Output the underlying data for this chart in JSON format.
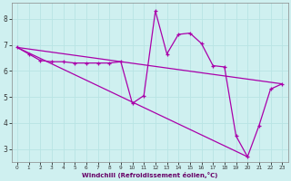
{
  "xlabel": "Windchill (Refroidissement éolien,°C)",
  "bg_color": "#cff0f0",
  "grid_color": "#b8e4e4",
  "line_color": "#aa00aa",
  "x_data": [
    0,
    1,
    2,
    3,
    4,
    5,
    6,
    7,
    8,
    9,
    10,
    11,
    12,
    13,
    14,
    15,
    16,
    17,
    18,
    19,
    20,
    21,
    22,
    23
  ],
  "y_main": [
    6.9,
    6.65,
    6.4,
    6.35,
    6.35,
    6.3,
    6.3,
    6.3,
    6.3,
    6.35,
    4.75,
    5.05,
    8.3,
    6.65,
    7.4,
    7.45,
    7.05,
    6.2,
    6.15,
    3.5,
    2.7,
    3.9,
    5.3,
    5.5
  ],
  "y_trend1_start": 6.9,
  "y_trend1_end": 5.5,
  "y_trend2_start": 6.9,
  "y_trend2_end": 2.7,
  "xlim": [
    -0.5,
    23.5
  ],
  "ylim": [
    2.5,
    8.6
  ],
  "yticks": [
    3,
    4,
    5,
    6,
    7,
    8
  ],
  "xticks": [
    0,
    1,
    2,
    3,
    4,
    5,
    6,
    7,
    8,
    9,
    10,
    11,
    12,
    13,
    14,
    15,
    16,
    17,
    18,
    19,
    20,
    21,
    22,
    23
  ]
}
